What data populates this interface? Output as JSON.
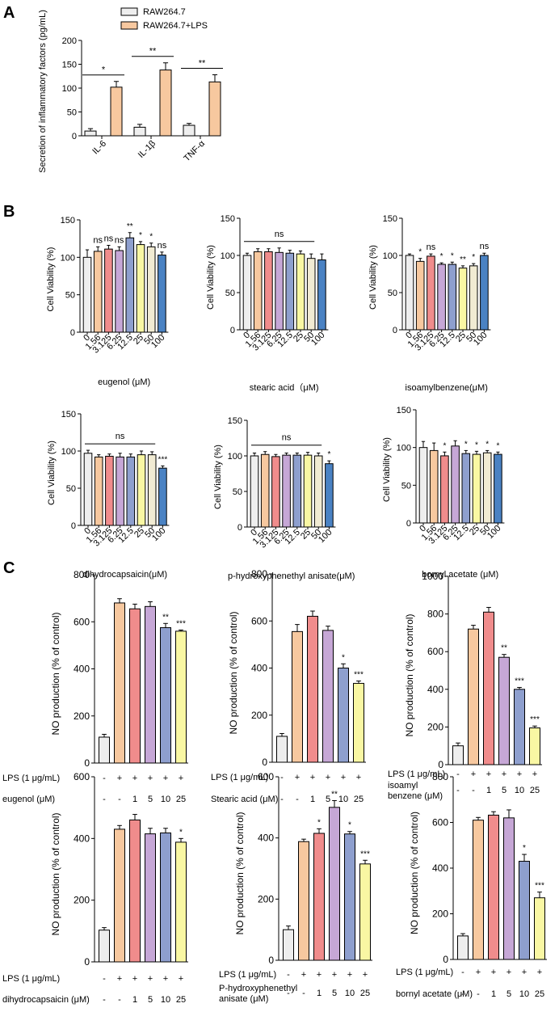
{
  "figure": {
    "panel_labels": [
      "A",
      "B",
      "C"
    ]
  },
  "colors": {
    "gray": "#eeeeee",
    "orange": "#f7c89f",
    "red": "#f08c8c",
    "purple": "#c6a7d6",
    "blue": "#8e9fce",
    "yellow": "#f9f7a3",
    "cream": "#f1ebd3",
    "darkblue": "#4a82c3",
    "stroke": "#000000"
  },
  "chart_data": [
    {
      "id": "A",
      "type": "bar",
      "title": "",
      "ylabel": "Secretion of inflammatory factors (pg/mL)",
      "ylim": [
        0,
        200
      ],
      "yticks": [
        0,
        50,
        100,
        150,
        200
      ],
      "categories": [
        "IL-6",
        "IL-1β",
        "TNF-α"
      ],
      "series": [
        {
          "name": "RAW264.7",
          "color_key": "gray",
          "values": [
            10,
            18,
            22
          ],
          "errors": [
            5,
            6,
            4
          ]
        },
        {
          "name": "RAW264.7+LPS",
          "color_key": "orange",
          "values": [
            102,
            138,
            113
          ],
          "errors": [
            12,
            15,
            15
          ]
        }
      ],
      "significance": [
        "*",
        "**",
        "**"
      ]
    },
    {
      "id": "B1",
      "type": "bar",
      "ylabel": "Cell Viability (%)",
      "xlabel": "eugenol (μM)",
      "ylim": [
        0,
        150
      ],
      "yticks": [
        0,
        50,
        100,
        150
      ],
      "categories": [
        "0",
        "1.56",
        "3.125",
        "6.25",
        "12.5",
        "25",
        "50",
        "100"
      ],
      "values": [
        100,
        108,
        111,
        109,
        126,
        117,
        114,
        103
      ],
      "errors": [
        10,
        6,
        5,
        5,
        7,
        4,
        5,
        4
      ],
      "colors": [
        "gray",
        "orange",
        "red",
        "purple",
        "blue",
        "yellow",
        "cream",
        "darkblue"
      ],
      "annotations": [
        "",
        "ns",
        "ns",
        "ns",
        "**",
        "*",
        "*",
        "ns"
      ]
    },
    {
      "id": "B2",
      "type": "bar",
      "ylabel": "Cell Viability (%)",
      "xlabel": "stearic acid（μM)",
      "ylim": [
        0,
        150
      ],
      "yticks": [
        0,
        50,
        100,
        150
      ],
      "categories": [
        "0",
        "1.56",
        "3.125",
        "6.25",
        "12.5",
        "25",
        "50",
        "100"
      ],
      "values": [
        100,
        105,
        105,
        104,
        103,
        102,
        96,
        94
      ],
      "errors": [
        3,
        4,
        4,
        6,
        4,
        4,
        6,
        8
      ],
      "colors": [
        "gray",
        "orange",
        "red",
        "purple",
        "blue",
        "yellow",
        "cream",
        "darkblue"
      ],
      "group_annotation": "ns"
    },
    {
      "id": "B3",
      "type": "bar",
      "ylabel": "Cell Viability (%)",
      "xlabel": "isoamylbenzene(μM)",
      "ylim": [
        0,
        150
      ],
      "yticks": [
        0,
        50,
        100,
        150
      ],
      "categories": [
        "0",
        "1.56",
        "3.125",
        "6.25",
        "12.5",
        "25",
        "50",
        "100"
      ],
      "values": [
        100,
        92,
        99,
        88,
        88,
        83,
        86,
        100
      ],
      "errors": [
        2,
        4,
        3,
        2,
        3,
        3,
        3,
        3
      ],
      "colors": [
        "gray",
        "orange",
        "red",
        "purple",
        "blue",
        "yellow",
        "cream",
        "darkblue"
      ],
      "annotations": [
        "",
        "*",
        "ns",
        "*",
        "*",
        "**",
        "*",
        "ns"
      ]
    },
    {
      "id": "B4",
      "type": "bar",
      "ylabel": "Cell Viability (%)",
      "xlabel": "dihydrocapsaicin(μM)",
      "ylim": [
        0,
        150
      ],
      "yticks": [
        0,
        50,
        100,
        150
      ],
      "categories": [
        "0",
        "1.56",
        "3.125",
        "6.25",
        "12.5",
        "25",
        "50",
        "100"
      ],
      "values": [
        97,
        92,
        93,
        92,
        92,
        95,
        95,
        77
      ],
      "errors": [
        4,
        3,
        3,
        5,
        4,
        5,
        4,
        3
      ],
      "colors": [
        "gray",
        "orange",
        "red",
        "purple",
        "blue",
        "yellow",
        "cream",
        "darkblue"
      ],
      "group_annotation": "ns",
      "annotations": [
        "",
        "",
        "",
        "",
        "",
        "",
        "",
        "***"
      ]
    },
    {
      "id": "B5",
      "type": "bar",
      "ylabel": "Cell Viability (%)",
      "xlabel": "p-hydroxyphenethyl anisate(μM)",
      "ylim": [
        0,
        150
      ],
      "yticks": [
        0,
        50,
        100,
        150
      ],
      "categories": [
        "0",
        "1.56",
        "3.125",
        "6.25",
        "12.5",
        "25",
        "50",
        "100"
      ],
      "values": [
        100,
        102,
        99,
        101,
        101,
        101,
        100,
        89
      ],
      "errors": [
        4,
        4,
        3,
        3,
        3,
        4,
        4,
        4
      ],
      "colors": [
        "gray",
        "orange",
        "red",
        "purple",
        "blue",
        "yellow",
        "cream",
        "darkblue"
      ],
      "group_annotation": "ns",
      "annotations": [
        "",
        "",
        "",
        "",
        "",
        "",
        "",
        "*"
      ]
    },
    {
      "id": "B6",
      "type": "bar",
      "ylabel": "Cell Viability (%)",
      "xlabel": "bornyl acetate (μM)",
      "ylim": [
        0,
        150
      ],
      "yticks": [
        0,
        50,
        100,
        150
      ],
      "categories": [
        "0",
        "1.56",
        "3.125",
        "6.25",
        "12.5",
        "25",
        "50",
        "100"
      ],
      "values": [
        100,
        96,
        89,
        102,
        92,
        91,
        93,
        91
      ],
      "errors": [
        8,
        10,
        5,
        7,
        4,
        4,
        3,
        3
      ],
      "colors": [
        "gray",
        "orange",
        "red",
        "purple",
        "blue",
        "yellow",
        "cream",
        "darkblue"
      ],
      "annotations": [
        "",
        "",
        "*",
        "",
        "*",
        "*",
        "*",
        "*"
      ]
    },
    {
      "id": "C1",
      "type": "bar",
      "ylabel": "NO production (% of control)",
      "ylim": [
        0,
        800
      ],
      "yticks": [
        0,
        200,
        400,
        600,
        800
      ],
      "values": [
        110,
        680,
        655,
        665,
        575,
        560
      ],
      "errors": [
        12,
        18,
        20,
        20,
        18,
        5
      ],
      "colors": [
        "gray",
        "orange",
        "red",
        "purple",
        "blue",
        "yellow"
      ],
      "annotations": [
        "",
        "",
        "",
        "",
        "**",
        "***"
      ],
      "lps_label": "LPS (1 μg/mL)",
      "lps_signs": [
        "-",
        "+",
        "+",
        "+",
        "+",
        "+"
      ],
      "compound_label": [
        "eugenol (μM)"
      ],
      "compound_doses": [
        "-",
        "-",
        "1",
        "5",
        "10",
        "25"
      ]
    },
    {
      "id": "C2",
      "type": "bar",
      "ylabel": "NO production (% of control)",
      "ylim": [
        0,
        800
      ],
      "yticks": [
        0,
        200,
        400,
        600,
        800
      ],
      "values": [
        110,
        555,
        620,
        560,
        400,
        335
      ],
      "errors": [
        12,
        30,
        22,
        18,
        18,
        10
      ],
      "colors": [
        "gray",
        "orange",
        "red",
        "purple",
        "blue",
        "yellow"
      ],
      "annotations": [
        "",
        "",
        "",
        "",
        "*",
        "***"
      ],
      "lps_label": "LPS (1 μg/mL)",
      "lps_signs": [
        "-",
        "+",
        "+",
        "+",
        "+",
        "+"
      ],
      "compound_label": [
        "Stearic acid (μM)"
      ],
      "compound_doses": [
        "-",
        "-",
        "1",
        "5",
        "10",
        "25"
      ]
    },
    {
      "id": "C3",
      "type": "bar",
      "ylabel": "NO production (% of control)",
      "ylim": [
        0,
        1000
      ],
      "yticks": [
        0,
        200,
        400,
        600,
        800,
        1000
      ],
      "values": [
        100,
        720,
        810,
        570,
        400,
        195
      ],
      "errors": [
        15,
        20,
        25,
        15,
        10,
        10
      ],
      "colors": [
        "gray",
        "orange",
        "red",
        "purple",
        "blue",
        "yellow"
      ],
      "annotations": [
        "",
        "",
        "",
        "**",
        "***",
        "***"
      ],
      "lps_label": "LPS (1 μg/mL)",
      "lps_signs": [
        "-",
        "+",
        "+",
        "+",
        "+",
        "+"
      ],
      "compound_label": [
        "isoamyl",
        "benzene (μM)"
      ],
      "compound_doses": [
        "-",
        "-",
        "1",
        "5",
        "10",
        "25"
      ]
    },
    {
      "id": "C4",
      "type": "bar",
      "ylabel": "NO production (% of control)",
      "ylim": [
        0,
        600
      ],
      "yticks": [
        0,
        200,
        400,
        600
      ],
      "values": [
        103,
        430,
        460,
        415,
        418,
        388
      ],
      "errors": [
        8,
        12,
        18,
        18,
        15,
        12
      ],
      "colors": [
        "gray",
        "orange",
        "red",
        "purple",
        "blue",
        "yellow"
      ],
      "annotations": [
        "",
        "",
        "",
        "",
        "",
        "*"
      ],
      "lps_label": "LPS (1 μg/mL)",
      "lps_signs": [
        "-",
        "+",
        "+",
        "+",
        "+",
        "+"
      ],
      "compound_label": [
        "dihydrocapsaicin (μM)"
      ],
      "compound_doses": [
        "-",
        "-",
        "1",
        "5",
        "10",
        "25"
      ]
    },
    {
      "id": "C5",
      "type": "bar",
      "ylabel": "NO production (% of control)",
      "ylim": [
        0,
        600
      ],
      "yticks": [
        0,
        200,
        400,
        600
      ],
      "values": [
        100,
        388,
        415,
        500,
        413,
        315
      ],
      "errors": [
        12,
        8,
        15,
        22,
        8,
        12
      ],
      "colors": [
        "gray",
        "orange",
        "red",
        "purple",
        "blue",
        "yellow"
      ],
      "annotations": [
        "",
        "",
        "*",
        "**",
        "*",
        "***"
      ],
      "lps_label": "LPS (1 μg/mL)",
      "lps_signs": [
        "-",
        "+",
        "+",
        "+",
        "+",
        "+"
      ],
      "compound_label": [
        "P-hydroxyphenethyl",
        "anisate (μM)"
      ],
      "compound_doses": [
        "-",
        "-",
        "1",
        "5",
        "10",
        "25"
      ]
    },
    {
      "id": "C6",
      "type": "bar",
      "ylabel": "NO production (% of control)",
      "ylim": [
        0,
        800
      ],
      "yticks": [
        0,
        200,
        400,
        600,
        800
      ],
      "values": [
        103,
        610,
        632,
        620,
        430,
        270
      ],
      "errors": [
        10,
        12,
        15,
        35,
        30,
        25
      ],
      "colors": [
        "gray",
        "orange",
        "red",
        "purple",
        "blue",
        "yellow"
      ],
      "annotations": [
        "",
        "",
        "",
        "",
        "*",
        "***"
      ],
      "lps_label": "LPS (1 μg/mL)",
      "lps_signs": [
        "-",
        "+",
        "+",
        "+",
        "+",
        "+"
      ],
      "compound_label": [
        "bornyl acetate (μM)"
      ],
      "compound_doses": [
        "-",
        "-",
        "1",
        "5",
        "10",
        "25"
      ]
    }
  ]
}
